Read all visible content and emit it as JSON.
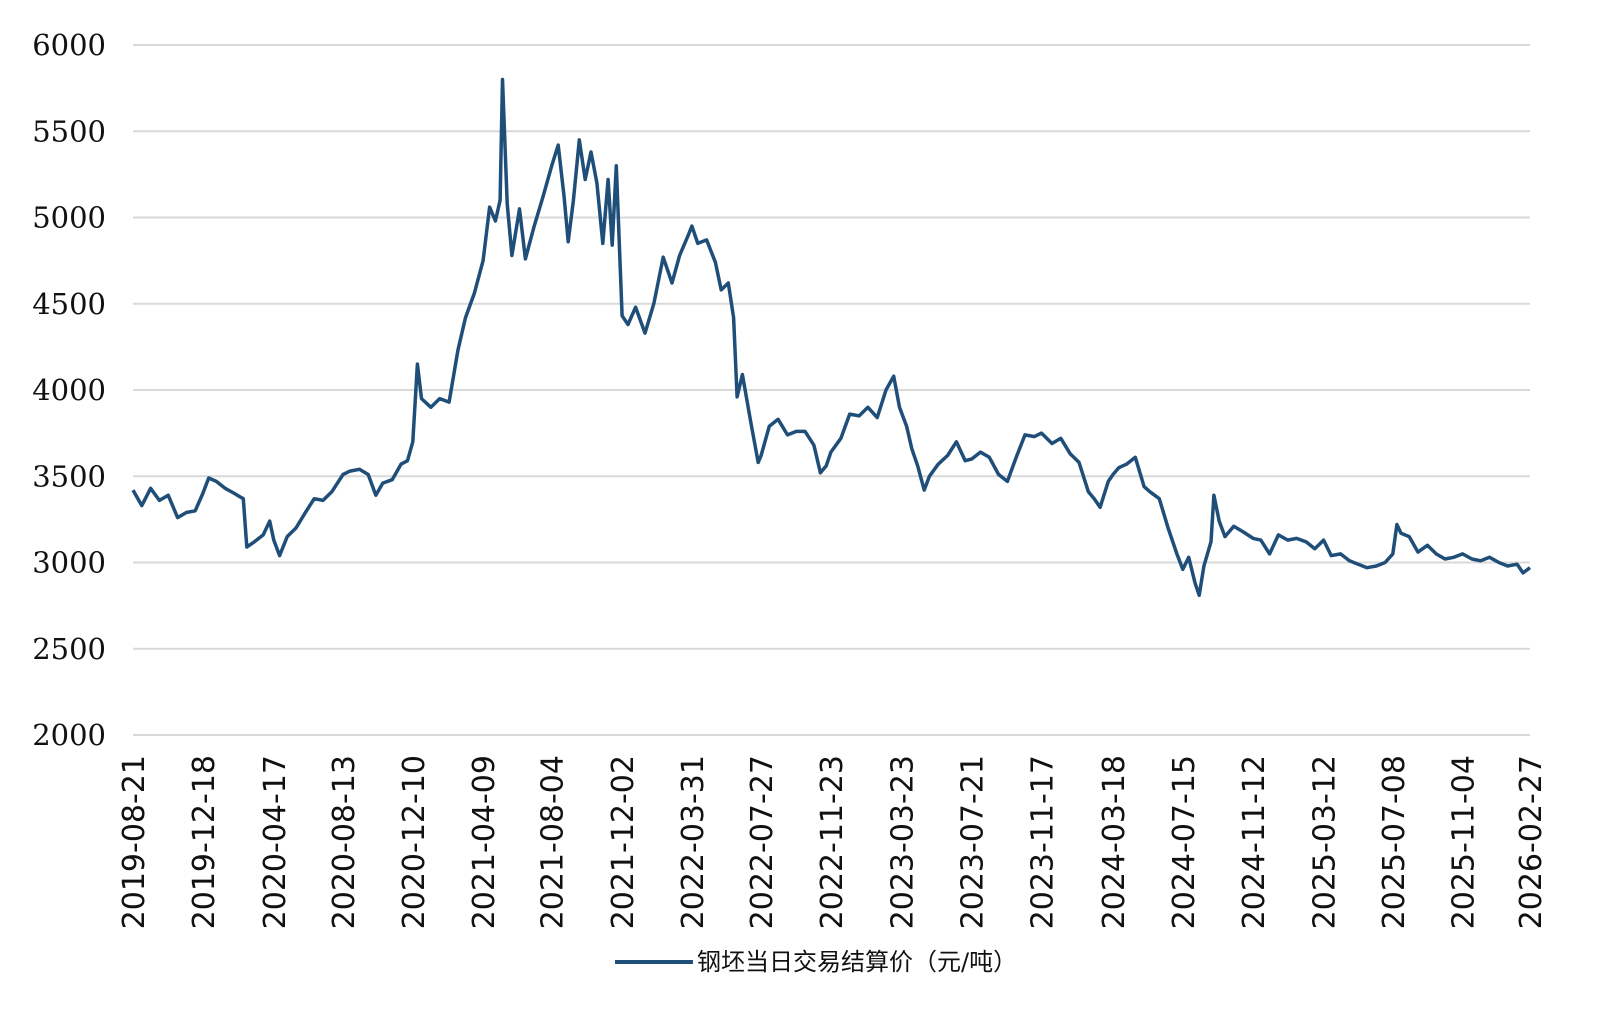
{
  "chart_data": {
    "type": "line",
    "title": "",
    "xlabel": "",
    "ylabel": "",
    "ylim": [
      2000,
      6000
    ],
    "yticks": [
      2000,
      2500,
      3000,
      3500,
      4000,
      4500,
      5000,
      5500,
      6000
    ],
    "grid": "horizontal",
    "legend_position": "bottom-center",
    "line_color": "#1f4e79",
    "grid_color": "#d9d9d9",
    "x_tick_labels": [
      "2019-08-21",
      "2019-12-18",
      "2020-04-17",
      "2020-08-13",
      "2020-12-10",
      "2021-04-09",
      "2021-08-04",
      "2021-12-02",
      "2022-03-31",
      "2022-07-27",
      "2022-11-23",
      "2023-03-23",
      "2023-07-21",
      "2023-11-17",
      "2024-03-18",
      "2024-07-15",
      "2024-11-12",
      "2025-03-12",
      "2025-07-08",
      "2025-11-04",
      "2026-02-27"
    ],
    "series": [
      {
        "name": "钢坯当日交易结算价（元/吨）",
        "points": [
          [
            "2019-08-21",
            3420
          ],
          [
            "2019-09-05",
            3330
          ],
          [
            "2019-09-20",
            3430
          ],
          [
            "2019-10-05",
            3360
          ],
          [
            "2019-10-20",
            3390
          ],
          [
            "2019-11-05",
            3260
          ],
          [
            "2019-11-20",
            3290
          ],
          [
            "2019-12-05",
            3300
          ],
          [
            "2019-12-18",
            3400
          ],
          [
            "2019-12-28",
            3490
          ],
          [
            "2020-01-10",
            3470
          ],
          [
            "2020-01-25",
            3430
          ],
          [
            "2020-02-10",
            3400
          ],
          [
            "2020-02-20",
            3380
          ],
          [
            "2020-02-25",
            3370
          ],
          [
            "2020-03-02",
            3090
          ],
          [
            "2020-03-15",
            3120
          ],
          [
            "2020-03-30",
            3160
          ],
          [
            "2020-04-10",
            3240
          ],
          [
            "2020-04-17",
            3130
          ],
          [
            "2020-04-27",
            3040
          ],
          [
            "2020-05-10",
            3150
          ],
          [
            "2020-05-25",
            3200
          ],
          [
            "2020-06-10",
            3290
          ],
          [
            "2020-06-25",
            3370
          ],
          [
            "2020-07-10",
            3360
          ],
          [
            "2020-07-25",
            3410
          ],
          [
            "2020-08-13",
            3510
          ],
          [
            "2020-08-25",
            3530
          ],
          [
            "2020-09-10",
            3540
          ],
          [
            "2020-09-25",
            3510
          ],
          [
            "2020-10-08",
            3390
          ],
          [
            "2020-10-20",
            3460
          ],
          [
            "2020-11-05",
            3480
          ],
          [
            "2020-11-20",
            3570
          ],
          [
            "2020-12-01",
            3590
          ],
          [
            "2020-12-10",
            3700
          ],
          [
            "2020-12-18",
            4150
          ],
          [
            "2020-12-25",
            3950
          ],
          [
            "2021-01-10",
            3900
          ],
          [
            "2021-01-25",
            3950
          ],
          [
            "2021-02-10",
            3930
          ],
          [
            "2021-02-25",
            4230
          ],
          [
            "2021-03-10",
            4420
          ],
          [
            "2021-03-25",
            4560
          ],
          [
            "2021-04-09",
            4750
          ],
          [
            "2021-04-20",
            5060
          ],
          [
            "2021-04-30",
            4980
          ],
          [
            "2021-05-08",
            5100
          ],
          [
            "2021-05-12",
            5800
          ],
          [
            "2021-05-20",
            5080
          ],
          [
            "2021-05-28",
            4780
          ],
          [
            "2021-06-10",
            5050
          ],
          [
            "2021-06-20",
            4760
          ],
          [
            "2021-07-05",
            4950
          ],
          [
            "2021-07-20",
            5120
          ],
          [
            "2021-08-04",
            5300
          ],
          [
            "2021-08-15",
            5420
          ],
          [
            "2021-08-25",
            5120
          ],
          [
            "2021-09-01",
            4860
          ],
          [
            "2021-09-10",
            5100
          ],
          [
            "2021-09-20",
            5450
          ],
          [
            "2021-09-30",
            5220
          ],
          [
            "2021-10-10",
            5380
          ],
          [
            "2021-10-20",
            5200
          ],
          [
            "2021-10-30",
            4850
          ],
          [
            "2021-11-08",
            5220
          ],
          [
            "2021-11-15",
            4840
          ],
          [
            "2021-11-22",
            5300
          ],
          [
            "2021-12-02",
            4430
          ],
          [
            "2021-12-12",
            4380
          ],
          [
            "2021-12-25",
            4480
          ],
          [
            "2022-01-10",
            4330
          ],
          [
            "2022-01-25",
            4500
          ],
          [
            "2022-02-10",
            4770
          ],
          [
            "2022-02-25",
            4620
          ],
          [
            "2022-03-10",
            4780
          ],
          [
            "2022-03-25",
            4900
          ],
          [
            "2022-03-31",
            4950
          ],
          [
            "2022-04-10",
            4850
          ],
          [
            "2022-04-25",
            4870
          ],
          [
            "2022-05-10",
            4740
          ],
          [
            "2022-05-20",
            4580
          ],
          [
            "2022-06-01",
            4620
          ],
          [
            "2022-06-10",
            4420
          ],
          [
            "2022-06-16",
            3960
          ],
          [
            "2022-06-25",
            4090
          ],
          [
            "2022-07-10",
            3800
          ],
          [
            "2022-07-22",
            3580
          ],
          [
            "2022-07-27",
            3620
          ],
          [
            "2022-08-10",
            3790
          ],
          [
            "2022-08-25",
            3830
          ],
          [
            "2022-09-10",
            3740
          ],
          [
            "2022-09-25",
            3760
          ],
          [
            "2022-10-10",
            3760
          ],
          [
            "2022-10-25",
            3680
          ],
          [
            "2022-11-05",
            3520
          ],
          [
            "2022-11-15",
            3560
          ],
          [
            "2022-11-23",
            3640
          ],
          [
            "2022-12-10",
            3720
          ],
          [
            "2022-12-25",
            3860
          ],
          [
            "2023-01-10",
            3850
          ],
          [
            "2023-01-25",
            3900
          ],
          [
            "2023-02-10",
            3840
          ],
          [
            "2023-02-25",
            4000
          ],
          [
            "2023-03-10",
            4080
          ],
          [
            "2023-03-20",
            3900
          ],
          [
            "2023-04-01",
            3790
          ],
          [
            "2023-04-10",
            3660
          ],
          [
            "2023-04-20",
            3560
          ],
          [
            "2023-05-01",
            3420
          ],
          [
            "2023-05-10",
            3500
          ],
          [
            "2023-05-25",
            3570
          ],
          [
            "2023-06-10",
            3620
          ],
          [
            "2023-06-25",
            3700
          ],
          [
            "2023-07-10",
            3590
          ],
          [
            "2023-07-21",
            3600
          ],
          [
            "2023-08-05",
            3640
          ],
          [
            "2023-08-20",
            3610
          ],
          [
            "2023-09-05",
            3510
          ],
          [
            "2023-09-20",
            3470
          ],
          [
            "2023-10-05",
            3610
          ],
          [
            "2023-10-20",
            3740
          ],
          [
            "2023-11-05",
            3730
          ],
          [
            "2023-11-17",
            3750
          ],
          [
            "2023-12-05",
            3690
          ],
          [
            "2023-12-20",
            3720
          ],
          [
            "2024-01-05",
            3630
          ],
          [
            "2024-01-20",
            3580
          ],
          [
            "2024-02-05",
            3410
          ],
          [
            "2024-02-15",
            3370
          ],
          [
            "2024-02-25",
            3320
          ],
          [
            "2024-03-10",
            3470
          ],
          [
            "2024-03-18",
            3510
          ],
          [
            "2024-03-28",
            3550
          ],
          [
            "2024-04-10",
            3570
          ],
          [
            "2024-04-25",
            3610
          ],
          [
            "2024-05-10",
            3440
          ],
          [
            "2024-05-20",
            3410
          ],
          [
            "2024-06-05",
            3370
          ],
          [
            "2024-06-20",
            3200
          ],
          [
            "2024-07-05",
            3050
          ],
          [
            "2024-07-15",
            2960
          ],
          [
            "2024-07-25",
            3030
          ],
          [
            "2024-08-05",
            2880
          ],
          [
            "2024-08-12",
            2810
          ],
          [
            "2024-08-20",
            2980
          ],
          [
            "2024-09-01",
            3120
          ],
          [
            "2024-09-06",
            3390
          ],
          [
            "2024-09-15",
            3240
          ],
          [
            "2024-09-25",
            3150
          ],
          [
            "2024-10-10",
            3210
          ],
          [
            "2024-10-25",
            3180
          ],
          [
            "2024-11-12",
            3140
          ],
          [
            "2024-11-25",
            3130
          ],
          [
            "2024-12-10",
            3050
          ],
          [
            "2024-12-25",
            3160
          ],
          [
            "2025-01-10",
            3130
          ],
          [
            "2025-01-25",
            3140
          ],
          [
            "2025-02-10",
            3120
          ],
          [
            "2025-02-25",
            3080
          ],
          [
            "2025-03-12",
            3130
          ],
          [
            "2025-03-25",
            3040
          ],
          [
            "2025-04-10",
            3050
          ],
          [
            "2025-04-25",
            3010
          ],
          [
            "2025-05-10",
            2990
          ],
          [
            "2025-05-25",
            2970
          ],
          [
            "2025-06-10",
            2980
          ],
          [
            "2025-06-25",
            3000
          ],
          [
            "2025-07-08",
            3050
          ],
          [
            "2025-07-15",
            3220
          ],
          [
            "2025-07-22",
            3170
          ],
          [
            "2025-08-05",
            3150
          ],
          [
            "2025-08-20",
            3060
          ],
          [
            "2025-09-05",
            3100
          ],
          [
            "2025-09-20",
            3050
          ],
          [
            "2025-10-05",
            3020
          ],
          [
            "2025-10-20",
            3030
          ],
          [
            "2025-11-04",
            3050
          ],
          [
            "2025-11-20",
            3020
          ],
          [
            "2025-12-05",
            3010
          ],
          [
            "2025-12-20",
            3030
          ],
          [
            "2026-01-05",
            3000
          ],
          [
            "2026-01-20",
            2980
          ],
          [
            "2026-02-05",
            2990
          ],
          [
            "2026-02-15",
            2940
          ],
          [
            "2026-02-27",
            2970
          ]
        ]
      }
    ]
  }
}
